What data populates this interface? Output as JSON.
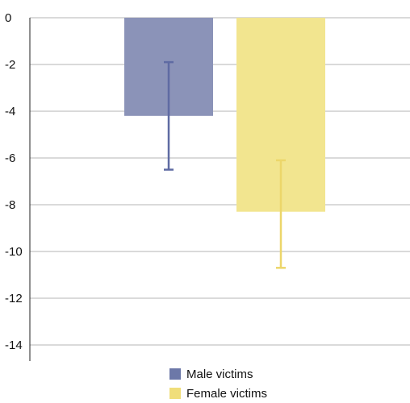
{
  "chart_data": {
    "type": "bar",
    "title_fragment": "",
    "categories": [
      "Male victims",
      "Female victims"
    ],
    "series": [
      {
        "name": "Male victims",
        "value": -4.2,
        "error_low": -6.5,
        "error_high": -1.9,
        "color": "#8b93b8",
        "error_color": "#5f6ba3"
      },
      {
        "name": "Female victims",
        "value": -8.3,
        "error_low": -10.7,
        "error_high": -6.1,
        "color": "#f2e58f",
        "error_color": "#ecd66a"
      }
    ],
    "ylim": [
      -14,
      0
    ],
    "yticks": [
      "0",
      "-2",
      "-4",
      "-6",
      "-8",
      "-10",
      "-12",
      "-14"
    ],
    "grid": true,
    "legend_position": "bottom"
  },
  "legend": {
    "items": [
      {
        "label": "Male victims",
        "color": "#6c78a8"
      },
      {
        "label": "Female victims",
        "color": "#f0de7a"
      }
    ]
  }
}
